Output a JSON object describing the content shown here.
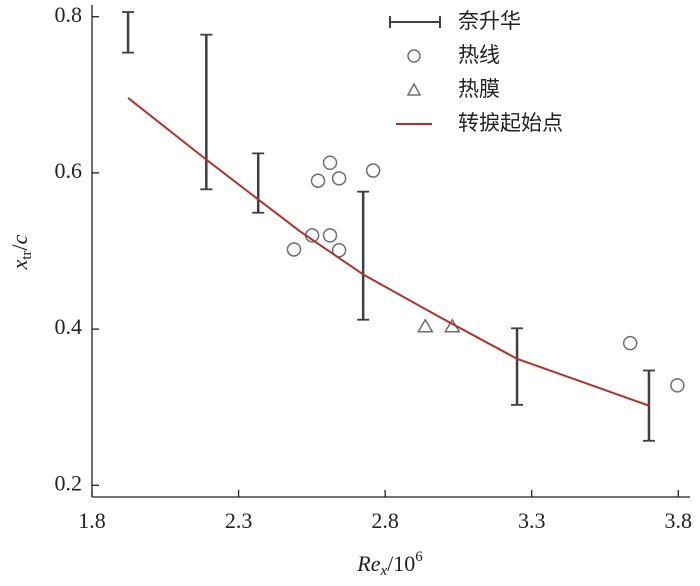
{
  "chart_data": {
    "type": "scatter",
    "xlabel": [
      "Re",
      "x",
      "/10",
      "6"
    ],
    "ylabel": [
      "x",
      "tr",
      "/",
      "c"
    ],
    "xlim": [
      1.8,
      3.84
    ],
    "ylim": [
      0.185,
      0.815
    ],
    "xticks": [
      1.8,
      2.3,
      2.8,
      3.3,
      3.8
    ],
    "yticks": [
      0.2,
      0.4,
      0.6,
      0.8
    ],
    "legend": "upper center",
    "series": [
      {
        "name": "奈升华",
        "marker": "errorbar",
        "color": "#3c3f48",
        "x": [
          1.923,
          2.19,
          2.367,
          2.725,
          3.25,
          3.7
        ],
        "values": [
          0.78,
          0.678,
          0.587,
          0.494,
          0.352,
          0.302
        ],
        "errors": [
          0.026,
          0.099,
          0.038,
          0.082,
          0.049,
          0.045
        ]
      },
      {
        "name": "热线",
        "marker": "circle",
        "color": "#6b6e75",
        "x": [
          2.489,
          2.551,
          2.571,
          2.612,
          2.643,
          2.612,
          2.643,
          2.759,
          3.636,
          3.797
        ],
        "values": [
          0.502,
          0.52,
          0.59,
          0.613,
          0.593,
          0.52,
          0.501,
          0.603,
          0.382,
          0.328
        ]
      },
      {
        "name": "热膜",
        "marker": "triangle",
        "color": "#6b6e75",
        "x": [
          2.937,
          3.029
        ],
        "values": [
          0.403,
          0.403
        ]
      },
      {
        "name": "转捩起始点",
        "marker": "line",
        "color": "#b3312c",
        "x": [
          1.923,
          2.19,
          2.367,
          2.51,
          2.725,
          2.988,
          3.25,
          3.7
        ],
        "values": [
          0.696,
          0.617,
          0.566,
          0.525,
          0.47,
          0.415,
          0.362,
          0.302
        ]
      }
    ]
  }
}
